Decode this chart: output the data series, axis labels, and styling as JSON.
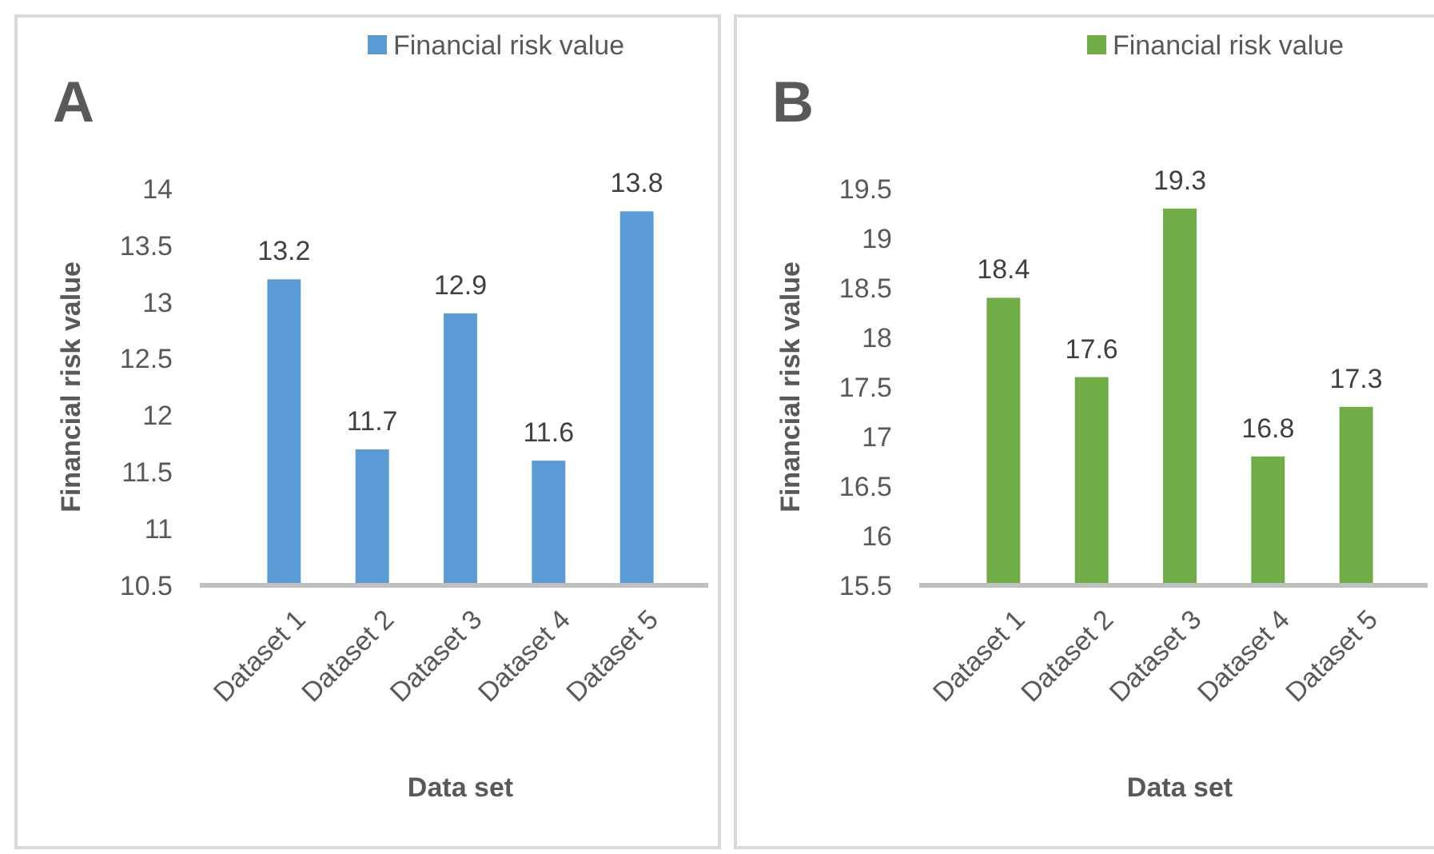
{
  "chart_data": [
    {
      "type": "bar",
      "title": "A",
      "xlabel": "Data set",
      "ylabel": "Financial risk value",
      "categories": [
        "Dataset 1",
        "Dataset 2",
        "Dataset 3",
        "Dataset 4",
        "Dataset 5"
      ],
      "series": [
        {
          "name": "Financial risk value",
          "color": "#5b9bd5",
          "values": [
            13.2,
            11.7,
            12.9,
            11.6,
            13.8
          ]
        }
      ],
      "ylim": [
        10.5,
        14
      ],
      "yticks": [
        10.5,
        11,
        11.5,
        12,
        12.5,
        13,
        13.5,
        14
      ],
      "grid": false,
      "legend": "top",
      "data_labels": true
    },
    {
      "type": "bar",
      "title": "B",
      "xlabel": "Data set",
      "ylabel": "Financial risk value",
      "categories": [
        "Dataset 1",
        "Dataset 2",
        "Dataset 3",
        "Dataset 4",
        "Dataset 5"
      ],
      "series": [
        {
          "name": "Financial risk value",
          "color": "#70ad47",
          "values": [
            18.4,
            17.6,
            19.3,
            16.8,
            17.3
          ]
        }
      ],
      "ylim": [
        15.5,
        19.5
      ],
      "yticks": [
        15.5,
        16,
        16.5,
        17,
        17.5,
        18,
        18.5,
        19,
        19.5
      ],
      "grid": false,
      "legend": "top",
      "data_labels": true
    }
  ]
}
